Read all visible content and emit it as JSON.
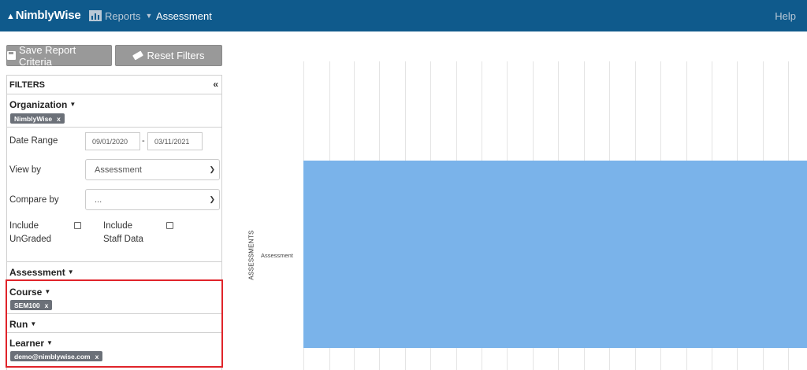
{
  "navbar": {
    "brand": "NimblyWise",
    "reports_label": "Reports",
    "current_page": "Assessment",
    "help_label": "Help"
  },
  "toolbar": {
    "save_label": "Save Report Criteria",
    "reset_label": "Reset Filters"
  },
  "filters": {
    "title": "FILTERS",
    "collapse_glyph": "«",
    "organization": {
      "label": "Organization",
      "tags": [
        "NimblyWise"
      ]
    },
    "date_range": {
      "label": "Date Range",
      "from": "09/01/2020",
      "separator": "-",
      "to": "03/11/2021"
    },
    "view_by": {
      "label": "View by",
      "selected": "Assessment"
    },
    "compare_by": {
      "label": "Compare by",
      "selected": "..."
    },
    "include_ungraded": {
      "label_line1": "Include",
      "label_line2": "UnGraded",
      "checked": false
    },
    "include_staff": {
      "label_line1": "Include",
      "label_line2": "Staff Data",
      "checked": false
    },
    "assessment": {
      "label": "Assessment"
    },
    "course": {
      "label": "Course",
      "tags": [
        "SEM100"
      ]
    },
    "run": {
      "label": "Run"
    },
    "learner": {
      "label": "Learner",
      "tags": [
        "demo@nimblywise.com"
      ]
    },
    "tag_remove_glyph": "x"
  },
  "chart_data": {
    "type": "bar",
    "orientation": "horizontal",
    "categories": [
      "Assessment"
    ],
    "ylabel": "ASSESSMENTS",
    "grid": true,
    "colors": {
      "bar": "#7ab3ea"
    }
  },
  "colors": {
    "navbar": "#0f5a8c",
    "button": "#999999",
    "highlight": "#e0242a"
  }
}
